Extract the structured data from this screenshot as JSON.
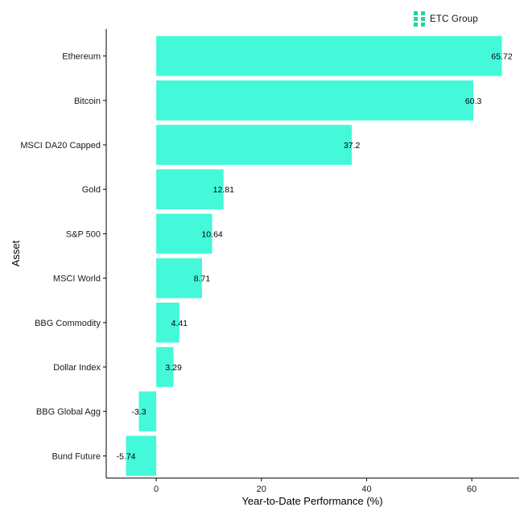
{
  "brand": {
    "name": "ETC Group",
    "color": "#1fd4a0"
  },
  "chart_data": {
    "type": "bar",
    "orientation": "horizontal",
    "categories": [
      "Ethereum",
      "Bitcoin",
      "MSCI DA20 Capped",
      "Gold",
      "S&P 500",
      "MSCI World",
      "BBG Commodity",
      "Dollar Index",
      "BBG Global Agg",
      "Bund Future"
    ],
    "values": [
      65.72,
      60.3,
      37.2,
      12.81,
      10.64,
      8.71,
      4.41,
      3.29,
      -3.3,
      -5.74
    ],
    "value_labels": [
      "65.72",
      "60.3",
      "37.2",
      "12.81",
      "10.64",
      "8.71",
      "4.41",
      "3.29",
      "-3.3",
      "-5.74"
    ],
    "xlabel": "Year-to-Date Performance (%)",
    "ylabel": "Asset",
    "xlim": [
      -9.5,
      69
    ],
    "xticks": [
      0,
      20,
      40,
      60
    ],
    "xtick_labels": [
      "0",
      "20",
      "40",
      "60"
    ],
    "bar_color": "#44f9d9",
    "grid": false
  }
}
